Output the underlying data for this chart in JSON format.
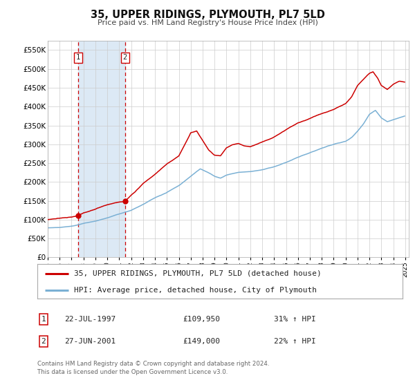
{
  "title": "35, UPPER RIDINGS, PLYMOUTH, PL7 5LD",
  "subtitle": "Price paid vs. HM Land Registry's House Price Index (HPI)",
  "legend_entry1": "35, UPPER RIDINGS, PLYMOUTH, PL7 5LD (detached house)",
  "legend_entry2": "HPI: Average price, detached house, City of Plymouth",
  "marker1_label": "1",
  "marker1_date": "22-JUL-1997",
  "marker1_price": 109950,
  "marker1_price_str": "£109,950",
  "marker1_hpi": "31% ↑ HPI",
  "marker1_x": 1997.55,
  "marker1_y": 109950,
  "marker2_label": "2",
  "marker2_date": "27-JUN-2001",
  "marker2_price": 149000,
  "marker2_price_str": "£149,000",
  "marker2_hpi": "22% ↑ HPI",
  "marker2_x": 2001.49,
  "marker2_y": 149000,
  "footer": "Contains HM Land Registry data © Crown copyright and database right 2024.\nThis data is licensed under the Open Government Licence v3.0.",
  "line1_color": "#cc0000",
  "line2_color": "#7ab0d4",
  "shading_color": "#dce9f5",
  "background_color": "#ffffff",
  "grid_color": "#cccccc",
  "ylim": [
    0,
    575000
  ],
  "xlim_start": 1995.0,
  "xlim_end": 2025.3,
  "yticks": [
    0,
    50000,
    100000,
    150000,
    200000,
    250000,
    300000,
    350000,
    400000,
    450000,
    500000,
    550000
  ]
}
